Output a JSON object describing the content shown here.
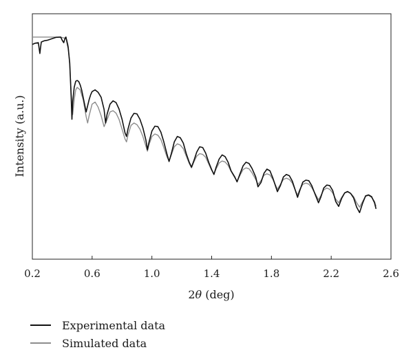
{
  "chart_data": {
    "type": "line",
    "xlabel_prefix": "2",
    "xlabel_symbol": "θ",
    "xlabel_suffix": " (deg)",
    "ylabel": "Intensity (a.u.)",
    "xlim": [
      0.2,
      2.6
    ],
    "ylim": [
      0,
      1
    ],
    "x_ticks": [
      "0.2",
      "0.6",
      "1.0",
      "1.4",
      "1.8",
      "2.2",
      "2.6"
    ],
    "x_tick_values": [
      0.2,
      0.6,
      1.0,
      1.4,
      1.8,
      2.2,
      2.6
    ],
    "y_ticks_shown": false,
    "grid": false,
    "legend_position": "bottom-left",
    "series": [
      {
        "name": "Experimental data",
        "color": "#111111",
        "x": [
          0.2,
          0.22,
          0.24,
          0.245,
          0.25,
          0.255,
          0.26,
          0.28,
          0.3,
          0.33,
          0.36,
          0.39,
          0.4,
          0.41,
          0.415,
          0.42,
          0.425,
          0.43,
          0.44,
          0.45,
          0.46,
          0.465,
          0.47,
          0.48,
          0.49,
          0.5,
          0.51,
          0.52,
          0.53,
          0.54,
          0.55,
          0.56,
          0.57,
          0.58,
          0.59,
          0.6,
          0.62,
          0.64,
          0.66,
          0.68,
          0.69,
          0.7,
          0.72,
          0.74,
          0.76,
          0.78,
          0.8,
          0.82,
          0.83,
          0.84,
          0.86,
          0.88,
          0.9,
          0.92,
          0.94,
          0.96,
          0.97,
          0.98,
          1.0,
          1.02,
          1.04,
          1.06,
          1.08,
          1.1,
          1.115,
          1.13,
          1.15,
          1.17,
          1.19,
          1.21,
          1.23,
          1.25,
          1.265,
          1.28,
          1.3,
          1.32,
          1.34,
          1.36,
          1.38,
          1.4,
          1.415,
          1.43,
          1.45,
          1.47,
          1.49,
          1.51,
          1.53,
          1.555,
          1.57,
          1.59,
          1.61,
          1.63,
          1.65,
          1.67,
          1.695,
          1.71,
          1.73,
          1.75,
          1.77,
          1.79,
          1.81,
          1.84,
          1.86,
          1.88,
          1.9,
          1.92,
          1.94,
          1.96,
          1.975,
          1.99,
          2.01,
          2.03,
          2.05,
          2.07,
          2.09,
          2.115,
          2.13,
          2.15,
          2.17,
          2.19,
          2.21,
          2.23,
          2.25,
          2.27,
          2.29,
          2.31,
          2.33,
          2.35,
          2.37,
          2.39,
          2.41,
          2.43,
          2.45,
          2.47,
          2.49,
          2.5
        ],
        "y": [
          0.875,
          0.88,
          0.882,
          0.86,
          0.838,
          0.862,
          0.885,
          0.89,
          0.892,
          0.898,
          0.904,
          0.905,
          0.892,
          0.882,
          0.893,
          0.902,
          0.905,
          0.89,
          0.86,
          0.8,
          0.66,
          0.57,
          0.64,
          0.7,
          0.725,
          0.728,
          0.724,
          0.71,
          0.69,
          0.66,
          0.63,
          0.6,
          0.625,
          0.65,
          0.67,
          0.683,
          0.69,
          0.68,
          0.66,
          0.61,
          0.555,
          0.59,
          0.632,
          0.645,
          0.638,
          0.612,
          0.57,
          0.515,
          0.5,
          0.53,
          0.575,
          0.594,
          0.592,
          0.57,
          0.535,
          0.485,
          0.446,
          0.475,
          0.522,
          0.542,
          0.54,
          0.518,
          0.478,
          0.43,
          0.398,
          0.43,
          0.478,
          0.5,
          0.495,
          0.473,
          0.43,
          0.395,
          0.375,
          0.4,
          0.436,
          0.458,
          0.455,
          0.432,
          0.395,
          0.365,
          0.345,
          0.375,
          0.408,
          0.425,
          0.418,
          0.395,
          0.36,
          0.335,
          0.315,
          0.348,
          0.38,
          0.395,
          0.39,
          0.37,
          0.335,
          0.295,
          0.312,
          0.35,
          0.367,
          0.36,
          0.33,
          0.275,
          0.3,
          0.335,
          0.345,
          0.34,
          0.318,
          0.28,
          0.252,
          0.28,
          0.314,
          0.322,
          0.32,
          0.3,
          0.268,
          0.23,
          0.252,
          0.29,
          0.302,
          0.3,
          0.28,
          0.235,
          0.215,
          0.248,
          0.27,
          0.276,
          0.268,
          0.25,
          0.212,
          0.19,
          0.228,
          0.258,
          0.262,
          0.255,
          0.23,
          0.205
        ]
      },
      {
        "name": "Simulated data",
        "color": "#8c8c8c",
        "x": [
          0.2,
          0.3,
          0.38,
          0.4,
          0.42,
          0.43,
          0.44,
          0.45,
          0.46,
          0.47,
          0.48,
          0.49,
          0.5,
          0.52,
          0.54,
          0.56,
          0.57,
          0.58,
          0.6,
          0.62,
          0.64,
          0.66,
          0.68,
          0.7,
          0.72,
          0.74,
          0.76,
          0.78,
          0.8,
          0.82,
          0.83,
          0.84,
          0.86,
          0.88,
          0.9,
          0.92,
          0.94,
          0.96,
          0.97,
          0.98,
          1.0,
          1.02,
          1.04,
          1.06,
          1.08,
          1.1,
          1.115,
          1.13,
          1.15,
          1.17,
          1.19,
          1.21,
          1.23,
          1.25,
          1.265,
          1.28,
          1.3,
          1.32,
          1.34,
          1.36,
          1.38,
          1.4,
          1.415,
          1.43,
          1.45,
          1.47,
          1.49,
          1.51,
          1.53,
          1.555,
          1.57,
          1.59,
          1.61,
          1.63,
          1.65,
          1.67,
          1.695,
          1.71,
          1.73,
          1.75,
          1.77,
          1.79,
          1.81,
          1.84,
          1.86,
          1.88,
          1.9,
          1.92,
          1.94,
          1.96,
          1.975,
          1.99,
          2.01,
          2.03,
          2.05,
          2.07,
          2.09,
          2.115,
          2.13,
          2.15,
          2.17,
          2.19,
          2.21,
          2.23,
          2.25,
          2.27,
          2.29,
          2.31,
          2.33,
          2.35,
          2.37,
          2.39,
          2.41,
          2.43,
          2.45,
          2.47,
          2.49,
          2.5
        ],
        "y": [
          0.905,
          0.905,
          0.905,
          0.903,
          0.9,
          0.895,
          0.87,
          0.79,
          0.68,
          0.59,
          0.65,
          0.69,
          0.7,
          0.69,
          0.65,
          0.58,
          0.555,
          0.585,
          0.632,
          0.64,
          0.62,
          0.585,
          0.54,
          0.568,
          0.6,
          0.605,
          0.595,
          0.57,
          0.53,
          0.49,
          0.478,
          0.505,
          0.545,
          0.555,
          0.548,
          0.53,
          0.5,
          0.46,
          0.44,
          0.465,
          0.5,
          0.51,
          0.505,
          0.488,
          0.455,
          0.418,
          0.4,
          0.425,
          0.458,
          0.47,
          0.465,
          0.45,
          0.42,
          0.39,
          0.372,
          0.395,
          0.42,
          0.43,
          0.427,
          0.415,
          0.388,
          0.362,
          0.348,
          0.368,
          0.392,
          0.4,
          0.396,
          0.382,
          0.358,
          0.332,
          0.318,
          0.342,
          0.365,
          0.372,
          0.368,
          0.352,
          0.325,
          0.305,
          0.32,
          0.342,
          0.348,
          0.343,
          0.325,
          0.285,
          0.305,
          0.325,
          0.33,
          0.325,
          0.31,
          0.28,
          0.262,
          0.285,
          0.305,
          0.31,
          0.306,
          0.292,
          0.27,
          0.242,
          0.258,
          0.282,
          0.29,
          0.285,
          0.27,
          0.245,
          0.23,
          0.252,
          0.27,
          0.274,
          0.268,
          0.255,
          0.23,
          0.212,
          0.235,
          0.256,
          0.26,
          0.252,
          0.235,
          0.215
        ]
      }
    ]
  }
}
